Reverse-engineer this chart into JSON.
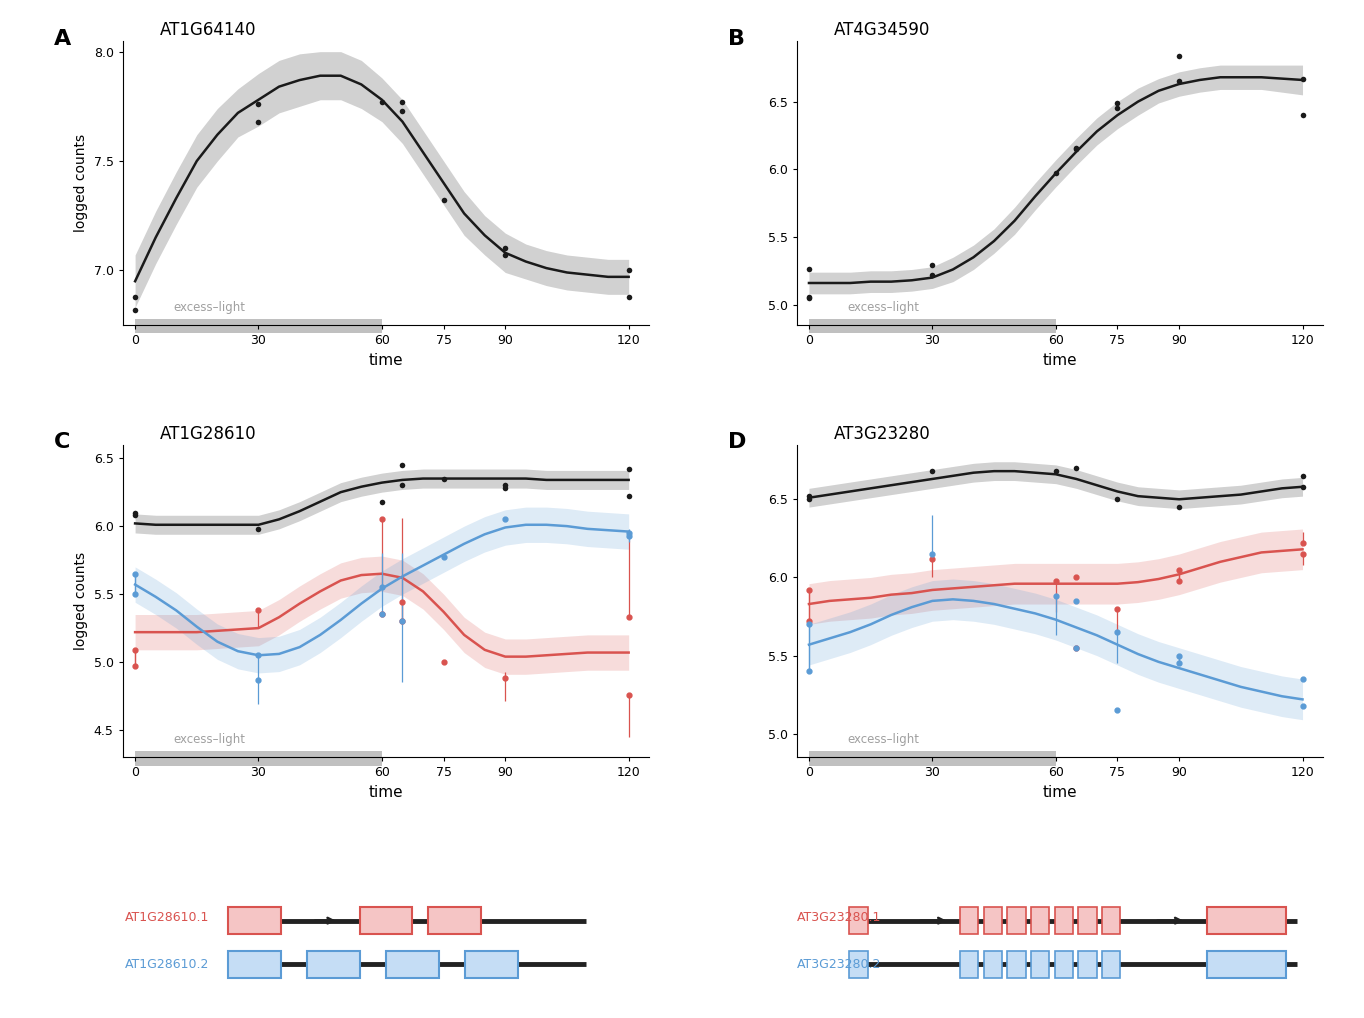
{
  "panel_A": {
    "title": "AT1G64140",
    "label": "A",
    "pts_x": [
      0,
      0,
      30,
      30,
      60,
      65,
      65,
      75,
      90,
      90,
      120,
      120
    ],
    "pts_y": [
      6.88,
      6.82,
      7.76,
      7.68,
      7.77,
      7.77,
      7.73,
      7.32,
      7.1,
      7.07,
      7.0,
      6.88
    ],
    "smooth_x": [
      0,
      5,
      10,
      15,
      20,
      25,
      30,
      35,
      40,
      45,
      50,
      55,
      60,
      65,
      70,
      75,
      80,
      85,
      90,
      95,
      100,
      105,
      110,
      115,
      120
    ],
    "smooth_y": [
      6.95,
      7.15,
      7.33,
      7.5,
      7.62,
      7.72,
      7.78,
      7.84,
      7.87,
      7.89,
      7.89,
      7.85,
      7.78,
      7.68,
      7.54,
      7.4,
      7.26,
      7.16,
      7.08,
      7.04,
      7.01,
      6.99,
      6.98,
      6.97,
      6.97
    ],
    "smooth_upper": [
      7.07,
      7.27,
      7.45,
      7.62,
      7.74,
      7.83,
      7.9,
      7.96,
      7.99,
      8.0,
      8.0,
      7.96,
      7.88,
      7.78,
      7.64,
      7.5,
      7.36,
      7.25,
      7.17,
      7.12,
      7.09,
      7.07,
      7.06,
      7.05,
      7.05
    ],
    "smooth_lower": [
      6.83,
      7.03,
      7.21,
      7.38,
      7.5,
      7.61,
      7.66,
      7.72,
      7.75,
      7.78,
      7.78,
      7.74,
      7.68,
      7.58,
      7.44,
      7.3,
      7.16,
      7.07,
      6.99,
      6.96,
      6.93,
      6.91,
      6.9,
      6.89,
      6.89
    ],
    "ylim": [
      6.75,
      8.05
    ],
    "yticks": [
      7.0,
      7.5,
      8.0
    ],
    "ylabel": "logged counts",
    "xlabel": "time",
    "excess_light_start": 0,
    "excess_light_end": 60,
    "excess_light_label": "excess–light"
  },
  "panel_B": {
    "title": "AT4G34590",
    "label": "B",
    "pts_x": [
      0,
      0,
      0,
      30,
      30,
      60,
      65,
      65,
      75,
      75,
      90,
      90,
      120,
      120
    ],
    "pts_y": [
      5.26,
      5.06,
      5.05,
      5.29,
      5.22,
      5.97,
      6.16,
      6.15,
      6.49,
      6.45,
      6.84,
      6.65,
      6.67,
      6.4
    ],
    "smooth_x": [
      0,
      5,
      10,
      15,
      20,
      25,
      30,
      35,
      40,
      45,
      50,
      55,
      60,
      65,
      70,
      75,
      80,
      85,
      90,
      95,
      100,
      105,
      110,
      115,
      120
    ],
    "smooth_y": [
      5.16,
      5.16,
      5.16,
      5.17,
      5.17,
      5.18,
      5.2,
      5.26,
      5.35,
      5.47,
      5.62,
      5.8,
      5.97,
      6.13,
      6.28,
      6.4,
      6.5,
      6.58,
      6.63,
      6.66,
      6.68,
      6.68,
      6.68,
      6.67,
      6.66
    ],
    "smooth_upper": [
      5.24,
      5.24,
      5.24,
      5.25,
      5.25,
      5.26,
      5.28,
      5.35,
      5.44,
      5.56,
      5.72,
      5.9,
      6.07,
      6.23,
      6.38,
      6.5,
      6.6,
      6.67,
      6.72,
      6.75,
      6.77,
      6.77,
      6.77,
      6.77,
      6.77
    ],
    "smooth_lower": [
      5.08,
      5.08,
      5.08,
      5.09,
      5.09,
      5.1,
      5.12,
      5.17,
      5.26,
      5.38,
      5.52,
      5.7,
      5.87,
      6.03,
      6.18,
      6.3,
      6.4,
      6.49,
      6.54,
      6.57,
      6.59,
      6.59,
      6.59,
      6.57,
      6.55
    ],
    "ylim": [
      4.85,
      6.95
    ],
    "yticks": [
      5.0,
      5.5,
      6.0,
      6.5
    ],
    "ylabel": "",
    "xlabel": "time",
    "excess_light_start": 0,
    "excess_light_end": 60,
    "excess_light_label": "excess–light"
  },
  "panel_C": {
    "title": "AT1G28610",
    "label": "C",
    "black_pts_x": [
      0,
      0,
      30,
      60,
      65,
      65,
      75,
      90,
      90,
      120,
      120
    ],
    "black_pts_y": [
      6.08,
      6.1,
      5.98,
      6.18,
      6.3,
      6.45,
      6.35,
      6.28,
      6.3,
      6.22,
      6.42
    ],
    "red_pts_x": [
      0,
      0,
      30,
      60,
      60,
      65,
      65,
      75,
      90,
      120,
      120
    ],
    "red_pts_y": [
      5.09,
      4.97,
      5.38,
      6.05,
      5.35,
      5.3,
      5.44,
      5.0,
      4.88,
      5.33,
      4.76
    ],
    "red_err_lo": [
      0.12,
      0.0,
      0.13,
      0.5,
      0.0,
      0.0,
      0.14,
      0.0,
      0.17,
      0.0,
      0.31
    ],
    "red_err_hi": [
      0.0,
      0.12,
      0.0,
      0.0,
      0.0,
      0.14,
      0.62,
      0.0,
      0.05,
      0.57,
      0.0
    ],
    "blue_pts_x": [
      0,
      0,
      30,
      30,
      60,
      60,
      65,
      75,
      90,
      120,
      120
    ],
    "blue_pts_y": [
      5.65,
      5.5,
      5.05,
      4.87,
      5.35,
      5.55,
      5.3,
      5.77,
      6.05,
      5.95,
      5.93
    ],
    "blue_err_lo": [
      0.15,
      0.0,
      0.18,
      0.18,
      0.0,
      0.0,
      0.45,
      0.0,
      0.0,
      0.05,
      0.05
    ],
    "blue_err_hi": [
      0.0,
      0.15,
      0.0,
      0.0,
      0.2,
      0.25,
      0.5,
      0.0,
      0.0,
      0.0,
      0.05
    ],
    "smooth_black_x": [
      0,
      5,
      10,
      15,
      20,
      25,
      30,
      35,
      40,
      45,
      50,
      55,
      60,
      65,
      70,
      75,
      80,
      85,
      90,
      95,
      100,
      105,
      110,
      115,
      120
    ],
    "smooth_black_y": [
      6.02,
      6.01,
      6.01,
      6.01,
      6.01,
      6.01,
      6.01,
      6.05,
      6.11,
      6.18,
      6.25,
      6.29,
      6.32,
      6.34,
      6.35,
      6.35,
      6.35,
      6.35,
      6.35,
      6.35,
      6.34,
      6.34,
      6.34,
      6.34,
      6.34
    ],
    "smooth_black_upper": [
      6.09,
      6.08,
      6.08,
      6.08,
      6.08,
      6.08,
      6.08,
      6.12,
      6.18,
      6.25,
      6.32,
      6.36,
      6.39,
      6.41,
      6.42,
      6.42,
      6.42,
      6.42,
      6.42,
      6.42,
      6.41,
      6.41,
      6.41,
      6.41,
      6.41
    ],
    "smooth_black_lower": [
      5.95,
      5.94,
      5.94,
      5.94,
      5.94,
      5.94,
      5.94,
      5.98,
      6.04,
      6.11,
      6.18,
      6.22,
      6.25,
      6.27,
      6.28,
      6.28,
      6.28,
      6.28,
      6.28,
      6.28,
      6.27,
      6.27,
      6.27,
      6.27,
      6.27
    ],
    "smooth_red_x": [
      0,
      5,
      10,
      15,
      20,
      25,
      30,
      35,
      40,
      45,
      50,
      55,
      60,
      65,
      70,
      75,
      80,
      85,
      90,
      95,
      100,
      105,
      110,
      115,
      120
    ],
    "smooth_red_y": [
      5.22,
      5.22,
      5.22,
      5.22,
      5.23,
      5.24,
      5.25,
      5.33,
      5.43,
      5.52,
      5.6,
      5.64,
      5.65,
      5.62,
      5.52,
      5.37,
      5.2,
      5.09,
      5.04,
      5.04,
      5.05,
      5.06,
      5.07,
      5.07,
      5.07
    ],
    "smooth_red_upper": [
      5.35,
      5.35,
      5.35,
      5.35,
      5.36,
      5.37,
      5.38,
      5.46,
      5.56,
      5.65,
      5.73,
      5.77,
      5.78,
      5.75,
      5.65,
      5.5,
      5.33,
      5.22,
      5.17,
      5.17,
      5.18,
      5.19,
      5.2,
      5.2,
      5.2
    ],
    "smooth_red_lower": [
      5.09,
      5.09,
      5.09,
      5.09,
      5.1,
      5.11,
      5.12,
      5.2,
      5.3,
      5.39,
      5.47,
      5.51,
      5.52,
      5.49,
      5.39,
      5.24,
      5.07,
      4.96,
      4.91,
      4.91,
      4.92,
      4.93,
      4.94,
      4.94,
      4.94
    ],
    "smooth_blue_x": [
      0,
      5,
      10,
      15,
      20,
      25,
      30,
      35,
      40,
      45,
      50,
      55,
      60,
      65,
      70,
      75,
      80,
      85,
      90,
      95,
      100,
      105,
      110,
      115,
      120
    ],
    "smooth_blue_y": [
      5.57,
      5.48,
      5.38,
      5.26,
      5.15,
      5.08,
      5.05,
      5.06,
      5.11,
      5.2,
      5.31,
      5.43,
      5.54,
      5.63,
      5.71,
      5.79,
      5.87,
      5.94,
      5.99,
      6.01,
      6.01,
      6.0,
      5.98,
      5.97,
      5.96
    ],
    "smooth_blue_upper": [
      5.7,
      5.61,
      5.51,
      5.39,
      5.28,
      5.21,
      5.18,
      5.19,
      5.24,
      5.33,
      5.44,
      5.56,
      5.67,
      5.76,
      5.84,
      5.92,
      6.0,
      6.07,
      6.12,
      6.14,
      6.14,
      6.13,
      6.11,
      6.1,
      6.09
    ],
    "smooth_blue_lower": [
      5.44,
      5.35,
      5.25,
      5.13,
      5.02,
      4.95,
      4.92,
      4.93,
      4.98,
      5.07,
      5.18,
      5.3,
      5.41,
      5.5,
      5.58,
      5.66,
      5.74,
      5.81,
      5.86,
      5.88,
      5.88,
      5.87,
      5.85,
      5.84,
      5.83
    ],
    "ylim": [
      4.3,
      6.6
    ],
    "yticks": [
      4.5,
      5.0,
      5.5,
      6.0,
      6.5
    ],
    "ylabel": "logged counts",
    "xlabel": "time",
    "excess_light_start": 0,
    "excess_light_end": 60,
    "excess_light_label": "excess–light",
    "gene1_label": "AT1G28610.1",
    "gene2_label": "AT1G28610.2"
  },
  "panel_D": {
    "title": "AT3G23280",
    "label": "D",
    "black_pts_x": [
      0,
      0,
      30,
      60,
      65,
      75,
      90,
      120,
      120
    ],
    "black_pts_y": [
      6.5,
      6.52,
      6.68,
      6.68,
      6.7,
      6.5,
      6.45,
      6.58,
      6.65
    ],
    "red_pts_x": [
      0,
      0,
      30,
      60,
      65,
      65,
      75,
      90,
      90,
      120,
      120
    ],
    "red_pts_y": [
      5.92,
      5.72,
      6.12,
      5.98,
      6.0,
      5.55,
      5.8,
      6.05,
      5.98,
      6.22,
      6.15
    ],
    "red_err_lo": [
      0.2,
      0.0,
      0.12,
      0.2,
      0.0,
      0.0,
      0.15,
      0.07,
      0.0,
      0.0,
      0.07
    ],
    "red_err_hi": [
      0.0,
      0.2,
      0.0,
      0.0,
      0.0,
      0.0,
      0.0,
      0.0,
      0.07,
      0.07,
      0.0
    ],
    "blue_pts_x": [
      0,
      0,
      30,
      60,
      65,
      65,
      75,
      75,
      90,
      90,
      120,
      120
    ],
    "blue_pts_y": [
      5.7,
      5.4,
      6.15,
      5.88,
      5.85,
      5.55,
      5.65,
      5.15,
      5.5,
      5.45,
      5.35,
      5.18
    ],
    "blue_err_lo": [
      0.3,
      0.0,
      0.0,
      0.25,
      0.0,
      0.0,
      0.2,
      0.0,
      0.05,
      0.0,
      0.0,
      0.0
    ],
    "blue_err_hi": [
      0.0,
      0.3,
      0.25,
      0.0,
      0.0,
      0.0,
      0.0,
      0.0,
      0.0,
      0.05,
      0.0,
      0.0
    ],
    "smooth_black_x": [
      0,
      5,
      10,
      15,
      20,
      25,
      30,
      35,
      40,
      45,
      50,
      55,
      60,
      65,
      70,
      75,
      80,
      85,
      90,
      95,
      100,
      105,
      110,
      115,
      120
    ],
    "smooth_black_y": [
      6.51,
      6.53,
      6.55,
      6.57,
      6.59,
      6.61,
      6.63,
      6.65,
      6.67,
      6.68,
      6.68,
      6.67,
      6.66,
      6.63,
      6.59,
      6.55,
      6.52,
      6.51,
      6.5,
      6.51,
      6.52,
      6.53,
      6.55,
      6.57,
      6.58
    ],
    "smooth_black_upper": [
      6.57,
      6.59,
      6.61,
      6.63,
      6.65,
      6.67,
      6.69,
      6.71,
      6.73,
      6.74,
      6.74,
      6.73,
      6.72,
      6.69,
      6.65,
      6.61,
      6.58,
      6.57,
      6.56,
      6.57,
      6.58,
      6.59,
      6.61,
      6.63,
      6.64
    ],
    "smooth_black_lower": [
      6.45,
      6.47,
      6.49,
      6.51,
      6.53,
      6.55,
      6.57,
      6.59,
      6.61,
      6.62,
      6.62,
      6.61,
      6.6,
      6.57,
      6.53,
      6.49,
      6.46,
      6.45,
      6.44,
      6.45,
      6.46,
      6.47,
      6.49,
      6.51,
      6.52
    ],
    "smooth_red_x": [
      0,
      5,
      10,
      15,
      20,
      25,
      30,
      35,
      40,
      45,
      50,
      55,
      60,
      65,
      70,
      75,
      80,
      85,
      90,
      95,
      100,
      105,
      110,
      115,
      120
    ],
    "smooth_red_y": [
      5.83,
      5.85,
      5.86,
      5.87,
      5.89,
      5.9,
      5.92,
      5.93,
      5.94,
      5.95,
      5.96,
      5.96,
      5.96,
      5.96,
      5.96,
      5.96,
      5.97,
      5.99,
      6.02,
      6.06,
      6.1,
      6.13,
      6.16,
      6.17,
      6.18
    ],
    "smooth_red_upper": [
      5.96,
      5.98,
      5.99,
      6.0,
      6.02,
      6.03,
      6.05,
      6.06,
      6.07,
      6.08,
      6.09,
      6.09,
      6.09,
      6.09,
      6.09,
      6.09,
      6.1,
      6.12,
      6.15,
      6.19,
      6.23,
      6.26,
      6.29,
      6.3,
      6.31
    ],
    "smooth_red_lower": [
      5.7,
      5.72,
      5.73,
      5.74,
      5.76,
      5.77,
      5.79,
      5.8,
      5.81,
      5.82,
      5.83,
      5.83,
      5.83,
      5.83,
      5.83,
      5.83,
      5.84,
      5.86,
      5.89,
      5.93,
      5.97,
      6.0,
      6.03,
      6.04,
      6.05
    ],
    "smooth_blue_x": [
      0,
      5,
      10,
      15,
      20,
      25,
      30,
      35,
      40,
      45,
      50,
      55,
      60,
      65,
      70,
      75,
      80,
      85,
      90,
      95,
      100,
      105,
      110,
      115,
      120
    ],
    "smooth_blue_y": [
      5.57,
      5.61,
      5.65,
      5.7,
      5.76,
      5.81,
      5.85,
      5.86,
      5.85,
      5.83,
      5.8,
      5.77,
      5.73,
      5.68,
      5.63,
      5.57,
      5.51,
      5.46,
      5.42,
      5.38,
      5.34,
      5.3,
      5.27,
      5.24,
      5.22
    ],
    "smooth_blue_upper": [
      5.7,
      5.74,
      5.78,
      5.83,
      5.89,
      5.94,
      5.98,
      5.99,
      5.98,
      5.96,
      5.93,
      5.9,
      5.86,
      5.81,
      5.76,
      5.7,
      5.64,
      5.59,
      5.55,
      5.51,
      5.47,
      5.43,
      5.4,
      5.37,
      5.35
    ],
    "smooth_blue_lower": [
      5.44,
      5.48,
      5.52,
      5.57,
      5.63,
      5.68,
      5.72,
      5.73,
      5.72,
      5.7,
      5.67,
      5.64,
      5.6,
      5.55,
      5.5,
      5.44,
      5.38,
      5.33,
      5.29,
      5.25,
      5.21,
      5.17,
      5.14,
      5.11,
      5.09
    ],
    "ylim": [
      4.85,
      6.85
    ],
    "yticks": [
      5.0,
      5.5,
      6.0,
      6.5
    ],
    "ylabel": "",
    "xlabel": "time",
    "excess_light_start": 0,
    "excess_light_end": 60,
    "excess_light_label": "excess–light",
    "gene1_label": "AT3G23280.1",
    "gene2_label": "AT3G23280.2"
  },
  "colors": {
    "black": "#1a1a1a",
    "red": "#d9534f",
    "blue": "#5b9bd5",
    "red_fill": "#e8a0a0",
    "blue_fill": "#a0c4e8",
    "gray_bar": "#c0c0c0",
    "gray_text": "#a0a0a0",
    "smooth_gray": "#cccccc"
  },
  "xticks": [
    0,
    30,
    60,
    75,
    90,
    120
  ]
}
